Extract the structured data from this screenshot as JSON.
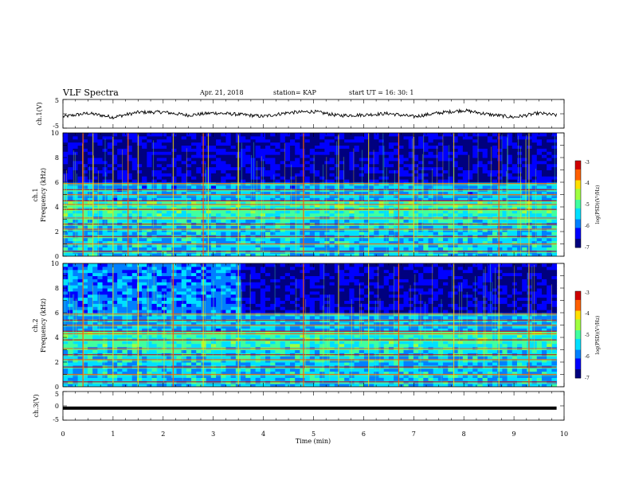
{
  "header": {
    "title": "VLF Spectra",
    "date": "Apr. 21, 2018",
    "station": "station= KAP",
    "start_ut": "start  UT =   16: 30: 1"
  },
  "chart_data": [
    {
      "type": "line",
      "panel": "ch.1 waveform",
      "ylabel": "ch.1(V)",
      "ylim": [
        -5,
        5
      ],
      "yticks": [
        "5",
        "-5"
      ],
      "xlim": [
        0,
        10
      ],
      "x": [
        0,
        0.5,
        1,
        1.5,
        2,
        2.5,
        3,
        3.5,
        4,
        4.5,
        5,
        5.5,
        6,
        6.5,
        7,
        7.5,
        8,
        8.5,
        9,
        9.5,
        9.85
      ],
      "y": [
        -1.0,
        0.2,
        -1.2,
        0.5,
        0.6,
        -0.5,
        0.3,
        -0.2,
        -0.9,
        0.4,
        0.8,
        -0.6,
        -0.4,
        0.1,
        -1.0,
        0.3,
        1.2,
        -0.2,
        -1.2,
        0.2,
        -0.5
      ]
    },
    {
      "type": "heatmap",
      "panel": "ch.1 spectrogram",
      "ylabel_top": "ch.1",
      "ylabel": "Frequency  (kHz)",
      "ylim": [
        0,
        10
      ],
      "yticks": [
        "0",
        "2",
        "4",
        "6",
        "8",
        "10"
      ],
      "xlim": [
        0,
        10
      ],
      "colorbar": {
        "label": "log(PSD)(V²/Hz)",
        "range": [
          -7,
          -3
        ],
        "ticks": [
          "-3",
          "-4",
          "-5",
          "-6",
          "-7"
        ]
      },
      "horizontal_lines_khz": [
        0.4,
        1.0,
        1.6,
        2.2,
        2.6,
        3.1,
        3.8,
        4.2,
        4.5,
        5.0,
        5.4,
        5.9
      ],
      "emission_times_min": [
        0.4,
        0.6,
        1.0,
        1.3,
        1.5,
        2.2,
        2.8,
        2.9,
        3.5,
        4.8,
        5.5,
        6.1,
        6.7,
        7.0,
        7.8,
        8.7,
        9.3
      ]
    },
    {
      "type": "heatmap",
      "panel": "ch.2 spectrogram",
      "ylabel_top": "ch.2",
      "ylabel": "Frequency  (kHz)",
      "ylim": [
        0,
        10
      ],
      "yticks": [
        "0",
        "2",
        "4",
        "6",
        "8",
        "10"
      ],
      "xlim": [
        0,
        10
      ],
      "colorbar": {
        "label": "log(PSD)(V²/Hz)",
        "range": [
          -7,
          -3
        ],
        "ticks": [
          "-3",
          "-4",
          "-5",
          "-6",
          "-7"
        ]
      },
      "horizontal_lines_khz": [
        0.4,
        1.0,
        1.6,
        2.2,
        2.6,
        3.1,
        3.8,
        4.3,
        4.5,
        5.0,
        5.4,
        5.9
      ],
      "emission_times_min": [
        0.4,
        1.0,
        1.5,
        2.2,
        2.8,
        3.5,
        4.8,
        5.5,
        6.1,
        6.7,
        7.8,
        8.7,
        9.3
      ]
    },
    {
      "type": "line",
      "panel": "ch.3 waveform",
      "ylabel": "ch.3(V)",
      "xlabel": "Time  (min)",
      "ylim": [
        -5,
        5
      ],
      "yticks": [
        "5",
        "0",
        "-5"
      ],
      "xlim": [
        0,
        10
      ],
      "xticks": [
        "0",
        "1",
        "2",
        "3",
        "4",
        "5",
        "6",
        "7",
        "8",
        "9",
        "10"
      ],
      "x": [
        0,
        9.85
      ],
      "y": [
        -0.8,
        -0.8
      ]
    }
  ],
  "colors": {
    "colormap": [
      "#00007f",
      "#0000ff",
      "#0080ff",
      "#00e0ff",
      "#40ffa0",
      "#a0ff40",
      "#ffe000",
      "#ff6000",
      "#d00000"
    ]
  }
}
